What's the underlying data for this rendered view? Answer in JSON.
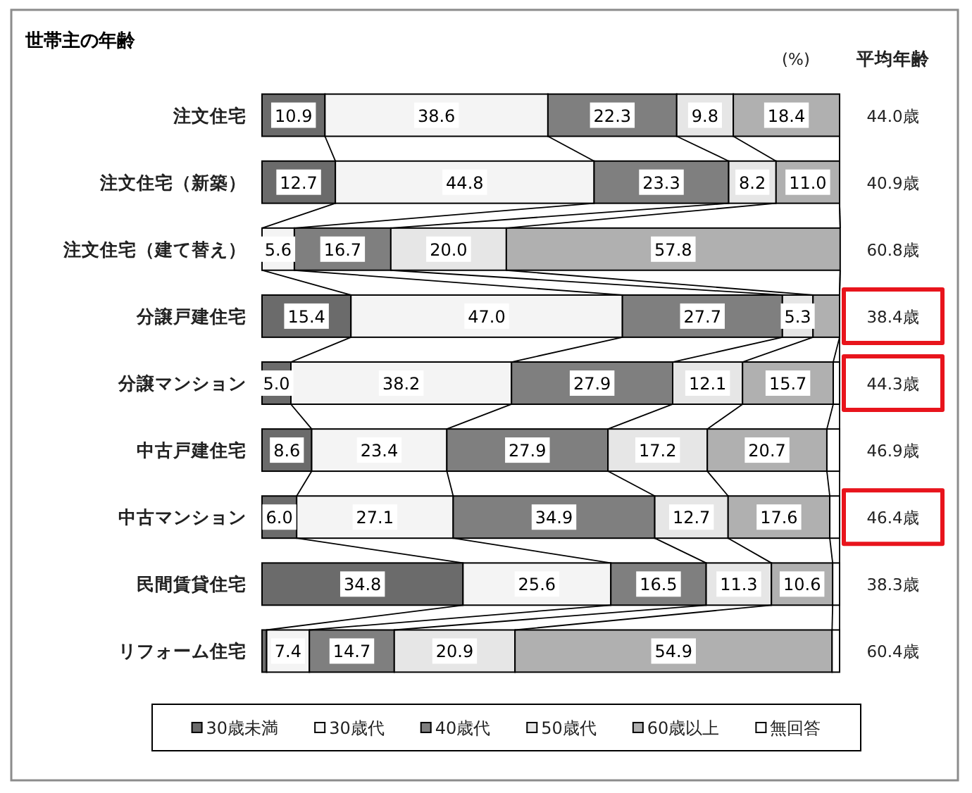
{
  "chart_data": {
    "type": "bar",
    "orientation": "horizontal",
    "stacked": true,
    "title": "世帯主の年齢",
    "categories": [
      "注文住宅",
      "注文住宅（新築）",
      "注文住宅（建て替え）",
      "分譲戸建住宅",
      "分譲マンション",
      "中古戸建住宅",
      "中古マンション",
      "民間賃貸住宅",
      "リフォーム住宅"
    ],
    "y2label": "平均年齢",
    "y2_categories": [
      "44.0歳",
      "40.9歳",
      "60.8歳",
      "38.4歳",
      "44.3歳",
      "46.9歳",
      "46.4歳",
      "38.3歳",
      "60.4歳"
    ],
    "annotations": [
      "(%)"
    ],
    "xlim": [
      0,
      100
    ],
    "tick_labels": "y",
    "legend": "bottom",
    "series": [
      {
        "name": "30歳未満",
        "color": "#6b6b6b",
        "values": [
          10.9,
          12.7,
          0,
          15.4,
          5.0,
          8.6,
          6.0,
          34.8,
          0.8
        ],
        "value_labels": [
          "10.9",
          "12.7",
          null,
          "15.4",
          "5.0",
          "8.6",
          "6.0",
          "34.8",
          null
        ]
      },
      {
        "name": "30歳代",
        "color": "#f4f4f4",
        "values": [
          38.6,
          44.8,
          5.6,
          47.0,
          38.2,
          23.4,
          27.1,
          25.6,
          7.4
        ],
        "value_labels": [
          "38.6",
          "44.8",
          "5.6",
          "47.0",
          "38.2",
          "23.4",
          "27.1",
          "25.6",
          "7.4"
        ]
      },
      {
        "name": "40歳代",
        "color": "#7f7f7f",
        "values": [
          22.3,
          23.3,
          16.7,
          27.7,
          27.9,
          27.9,
          34.9,
          16.5,
          14.7
        ],
        "value_labels": [
          "22.3",
          "23.3",
          "16.7",
          "27.7",
          "27.9",
          "27.9",
          "34.9",
          "16.5",
          "14.7"
        ]
      },
      {
        "name": "50歳代",
        "color": "#e6e6e6",
        "values": [
          9.8,
          8.2,
          20.0,
          5.3,
          12.1,
          17.2,
          12.7,
          11.3,
          20.9
        ],
        "value_labels": [
          "9.8",
          "8.2",
          "20.0",
          "5.3",
          "12.1",
          "17.2",
          "12.7",
          "11.3",
          "20.9"
        ]
      },
      {
        "name": "60歳以上",
        "color": "#b0b0b0",
        "values": [
          18.4,
          11.0,
          57.8,
          4.6,
          15.7,
          20.7,
          17.6,
          10.6,
          54.9
        ],
        "value_labels": [
          "18.4",
          "11.0",
          "57.8",
          null,
          "15.7",
          "20.7",
          "17.6",
          "10.6",
          "54.9"
        ]
      },
      {
        "name": "無回答",
        "color": "#ffffff",
        "values": [
          0,
          0,
          0,
          0,
          1.1,
          2.2,
          1.7,
          1.2,
          1.3
        ],
        "value_labels": [
          null,
          null,
          null,
          null,
          null,
          null,
          null,
          null,
          null
        ]
      }
    ]
  }
}
